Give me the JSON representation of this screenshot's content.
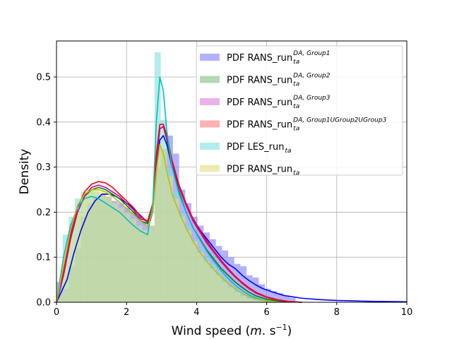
{
  "chart_data": {
    "type": "histogram+density",
    "xlabel": "Wind speed",
    "xlabel_unit_prefix": "(",
    "xlabel_unit_m": "m",
    "xlabel_unit_s": ". s",
    "xlabel_unit_exp": "−1",
    "xlabel_unit_suffix": ")",
    "ylabel": "Density",
    "xlim": [
      0,
      10
    ],
    "ylim": [
      0,
      0.58
    ],
    "x_ticks": [
      0,
      2,
      4,
      6,
      8,
      10
    ],
    "y_ticks": [
      0.0,
      0.1,
      0.2,
      0.3,
      0.4,
      0.5
    ],
    "y_tick_labels": [
      "0.0",
      "0.1",
      "0.2",
      "0.3",
      "0.4",
      "0.5"
    ],
    "grid": true,
    "legend_position": "top-right",
    "bin_width": 0.175,
    "series": [
      {
        "name": "PDF RANS_run",
        "name_sub": "ta",
        "name_sup": "DA, Group1",
        "color": "#0000ff",
        "fill": "#7f7fff",
        "bins_x": [
          0.0,
          0.175,
          0.35,
          0.525,
          0.7,
          0.875,
          1.05,
          1.225,
          1.4,
          1.575,
          1.75,
          1.925,
          2.1,
          2.275,
          2.45,
          2.625,
          2.8,
          2.975,
          3.15,
          3.325,
          3.5,
          3.675,
          3.85,
          4.025,
          4.2,
          4.375,
          4.55,
          4.725,
          4.9,
          5.075,
          5.25,
          5.425,
          5.6,
          5.775,
          5.95,
          6.125,
          6.3,
          6.475,
          6.65
        ],
        "bins_y": [
          0.045,
          0.03,
          0.08,
          0.12,
          0.19,
          0.22,
          0.235,
          0.24,
          0.235,
          0.225,
          0.22,
          0.21,
          0.2,
          0.19,
          0.18,
          0.17,
          0.3,
          0.34,
          0.37,
          0.33,
          0.25,
          0.22,
          0.19,
          0.17,
          0.155,
          0.14,
          0.125,
          0.115,
          0.1,
          0.085,
          0.08,
          0.06,
          0.055,
          0.04,
          0.03,
          0.025,
          0.02,
          0.015,
          0.01
        ],
        "curve_x": [
          0.0,
          0.3,
          0.5,
          0.7,
          0.9,
          1.1,
          1.3,
          1.5,
          1.7,
          1.9,
          2.1,
          2.3,
          2.5,
          2.65,
          2.75,
          2.85,
          2.95,
          3.05,
          3.15,
          3.3,
          3.5,
          3.7,
          3.9,
          4.1,
          4.3,
          4.5,
          4.7,
          4.9,
          5.1,
          5.3,
          5.5,
          5.7,
          5.9,
          6.2,
          6.5,
          7.0,
          7.5,
          8.0,
          8.5,
          9.0,
          10.0
        ],
        "curve_y": [
          0.0,
          0.05,
          0.11,
          0.16,
          0.2,
          0.225,
          0.24,
          0.24,
          0.235,
          0.225,
          0.215,
          0.2,
          0.185,
          0.175,
          0.2,
          0.29,
          0.36,
          0.37,
          0.35,
          0.3,
          0.255,
          0.215,
          0.185,
          0.16,
          0.14,
          0.12,
          0.1,
          0.085,
          0.075,
          0.06,
          0.048,
          0.038,
          0.03,
          0.022,
          0.015,
          0.009,
          0.006,
          0.004,
          0.003,
          0.002,
          0.001
        ]
      },
      {
        "name": "PDF RANS_run",
        "name_sub": "ta",
        "name_sup": "DA, Group2",
        "color": "#008000",
        "fill": "#7fbf7f",
        "bins_x": [],
        "bins_y": [],
        "curve_x": [
          0.0,
          0.2,
          0.4,
          0.6,
          0.8,
          1.0,
          1.2,
          1.4,
          1.6,
          1.8,
          2.0,
          2.2,
          2.4,
          2.6,
          2.75,
          2.85,
          2.95,
          3.05,
          3.15,
          3.3,
          3.5,
          3.7,
          3.9,
          4.1,
          4.3,
          4.5,
          4.7,
          4.9,
          5.1,
          5.3,
          5.5,
          5.7,
          6.0,
          6.3,
          6.6,
          7.0
        ],
        "curve_y": [
          0.0,
          0.06,
          0.14,
          0.2,
          0.235,
          0.25,
          0.255,
          0.25,
          0.24,
          0.23,
          0.215,
          0.2,
          0.18,
          0.175,
          0.21,
          0.31,
          0.385,
          0.39,
          0.36,
          0.3,
          0.245,
          0.2,
          0.165,
          0.14,
          0.115,
          0.095,
          0.075,
          0.06,
          0.045,
          0.033,
          0.022,
          0.014,
          0.007,
          0.003,
          0.001,
          0.0
        ]
      },
      {
        "name": "PDF RANS_run",
        "name_sub": "ta",
        "name_sup": "DA, Group3",
        "color": "#bf00bf",
        "fill": "#df7fdf",
        "bins_x": [],
        "bins_y": [],
        "curve_x": [
          0.0,
          0.2,
          0.4,
          0.6,
          0.8,
          1.0,
          1.2,
          1.4,
          1.6,
          1.8,
          2.0,
          2.2,
          2.4,
          2.6,
          2.75,
          2.85,
          2.95,
          3.05,
          3.15,
          3.3,
          3.5,
          3.7,
          3.9,
          4.1,
          4.3,
          4.5,
          4.7,
          4.9,
          5.1,
          5.3,
          5.5,
          5.7,
          6.0,
          6.3,
          6.6,
          7.0
        ],
        "curve_y": [
          0.0,
          0.06,
          0.14,
          0.2,
          0.235,
          0.255,
          0.26,
          0.255,
          0.245,
          0.235,
          0.22,
          0.205,
          0.185,
          0.18,
          0.215,
          0.315,
          0.385,
          0.39,
          0.365,
          0.31,
          0.255,
          0.215,
          0.18,
          0.155,
          0.13,
          0.11,
          0.09,
          0.072,
          0.056,
          0.042,
          0.03,
          0.02,
          0.011,
          0.005,
          0.002,
          0.0
        ]
      },
      {
        "name": "PDF RANS_run",
        "name_sub": "ta",
        "name_sup": "DA, Group1UGroup2UGroup3",
        "color": "#ff0000",
        "fill": "#ff7f7f",
        "bins_x": [],
        "bins_y": [],
        "curve_x": [
          0.0,
          0.2,
          0.4,
          0.6,
          0.8,
          1.0,
          1.2,
          1.4,
          1.6,
          1.8,
          2.0,
          2.2,
          2.4,
          2.6,
          2.75,
          2.85,
          2.95,
          3.05,
          3.15,
          3.3,
          3.5,
          3.7,
          3.9,
          4.1,
          4.3,
          4.5,
          4.7,
          4.9,
          5.1,
          5.3,
          5.5,
          5.7,
          6.0,
          6.3,
          6.6,
          7.0
        ],
        "curve_y": [
          0.0,
          0.07,
          0.15,
          0.21,
          0.245,
          0.262,
          0.268,
          0.265,
          0.255,
          0.24,
          0.225,
          0.21,
          0.19,
          0.18,
          0.22,
          0.33,
          0.395,
          0.395,
          0.37,
          0.315,
          0.26,
          0.22,
          0.185,
          0.158,
          0.135,
          0.113,
          0.093,
          0.075,
          0.058,
          0.044,
          0.032,
          0.022,
          0.012,
          0.006,
          0.002,
          0.0
        ]
      },
      {
        "name": "PDF LES_run",
        "name_sub": "ta",
        "name_sup": "",
        "color": "#00bfbf",
        "fill": "#7fdfdf",
        "bins_x": [
          0.0,
          0.175,
          0.35,
          0.525,
          0.7,
          0.875,
          1.05,
          1.225,
          1.4,
          1.575,
          1.75,
          1.925,
          2.1,
          2.275,
          2.45,
          2.625,
          2.8,
          2.975,
          3.15,
          3.325,
          3.5,
          3.675,
          3.85,
          4.025,
          4.2,
          4.375,
          4.55,
          4.725,
          4.9,
          5.075,
          5.25,
          5.425,
          5.6,
          5.775
        ],
        "bins_y": [
          0.035,
          0.15,
          0.19,
          0.23,
          0.245,
          0.25,
          0.245,
          0.235,
          0.225,
          0.215,
          0.2,
          0.19,
          0.175,
          0.165,
          0.16,
          0.16,
          0.555,
          0.405,
          0.3,
          0.245,
          0.2,
          0.17,
          0.14,
          0.12,
          0.1,
          0.085,
          0.07,
          0.055,
          0.04,
          0.03,
          0.02,
          0.012,
          0.008,
          0.004
        ],
        "curve_x": [
          0.0,
          0.2,
          0.4,
          0.6,
          0.8,
          1.0,
          1.2,
          1.4,
          1.6,
          1.8,
          2.0,
          2.2,
          2.4,
          2.6,
          2.75,
          2.85,
          2.95,
          3.05,
          3.15,
          3.3,
          3.5,
          3.7,
          3.9,
          4.1,
          4.3,
          4.5,
          4.7,
          4.9,
          5.1,
          5.3,
          5.5,
          5.7,
          6.0,
          6.3
        ],
        "curve_y": [
          0.0,
          0.1,
          0.17,
          0.21,
          0.23,
          0.235,
          0.23,
          0.22,
          0.21,
          0.2,
          0.185,
          0.17,
          0.158,
          0.15,
          0.22,
          0.4,
          0.5,
          0.47,
          0.38,
          0.3,
          0.24,
          0.2,
          0.165,
          0.138,
          0.112,
          0.09,
          0.07,
          0.053,
          0.038,
          0.026,
          0.016,
          0.009,
          0.004,
          0.001
        ]
      },
      {
        "name": "PDF RANS_run",
        "name_sub": "ta",
        "name_sup": "",
        "color": "#bfbf00",
        "fill": "#dfdf7f",
        "bins_x": [
          0.0,
          0.175,
          0.35,
          0.525,
          0.7,
          0.875,
          1.05,
          1.225,
          1.4,
          1.575,
          1.75,
          1.925,
          2.1,
          2.275,
          2.45,
          2.625,
          2.8,
          2.975,
          3.15,
          3.325,
          3.5,
          3.675,
          3.85,
          4.025,
          4.2,
          4.375,
          4.55,
          4.725,
          4.9,
          5.075,
          5.25,
          5.425,
          5.6,
          5.775
        ],
        "bins_y": [
          0.02,
          0.09,
          0.15,
          0.2,
          0.24,
          0.25,
          0.25,
          0.245,
          0.235,
          0.22,
          0.21,
          0.2,
          0.185,
          0.17,
          0.16,
          0.17,
          0.35,
          0.34,
          0.28,
          0.23,
          0.19,
          0.16,
          0.135,
          0.11,
          0.09,
          0.075,
          0.06,
          0.045,
          0.033,
          0.022,
          0.014,
          0.008,
          0.004,
          0.002
        ],
        "curve_x": [
          0.0,
          0.2,
          0.4,
          0.6,
          0.8,
          1.0,
          1.2,
          1.4,
          1.6,
          1.8,
          2.0,
          2.2,
          2.4,
          2.6,
          2.75,
          2.85,
          2.95,
          3.05,
          3.15,
          3.3,
          3.5,
          3.7,
          3.9,
          4.1,
          4.3,
          4.5,
          4.7,
          4.9,
          5.1,
          5.3,
          5.5,
          5.7,
          6.0,
          6.3
        ],
        "curve_y": [
          0.0,
          0.08,
          0.16,
          0.215,
          0.24,
          0.25,
          0.25,
          0.245,
          0.235,
          0.222,
          0.208,
          0.195,
          0.18,
          0.168,
          0.2,
          0.29,
          0.35,
          0.33,
          0.29,
          0.24,
          0.2,
          0.165,
          0.135,
          0.11,
          0.09,
          0.072,
          0.056,
          0.042,
          0.03,
          0.02,
          0.012,
          0.007,
          0.003,
          0.001
        ]
      }
    ]
  }
}
